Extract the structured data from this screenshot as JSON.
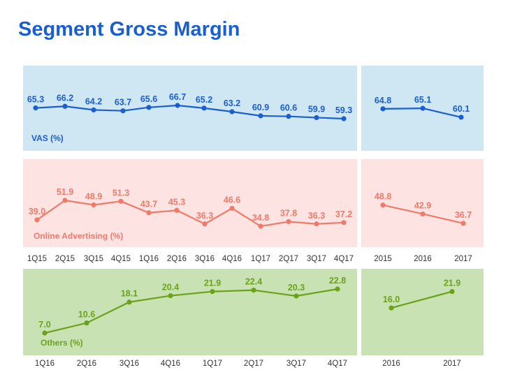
{
  "title": "Segment Gross Margin",
  "chart_data": [
    {
      "type": "line",
      "name": "VAS (%)",
      "color": "#1a5fd1",
      "panel_color": "#cfe7f2",
      "x": [
        "1Q15",
        "2Q15",
        "3Q15",
        "4Q15",
        "1Q16",
        "2Q16",
        "3Q16",
        "4Q16",
        "1Q17",
        "2Q17",
        "3Q17",
        "4Q17"
      ],
      "values": [
        65.3,
        66.2,
        64.2,
        63.7,
        65.6,
        66.7,
        65.2,
        63.2,
        60.9,
        60.6,
        59.9,
        59.3
      ]
    },
    {
      "type": "line",
      "name": "VAS (%)",
      "color": "#1a5fd1",
      "panel_color": "#cfe7f2",
      "x": [
        "2015",
        "2016",
        "2017"
      ],
      "values": [
        64.8,
        65.1,
        60.1
      ]
    },
    {
      "type": "line",
      "name": "Online Advertising (%)",
      "color": "#f07a6a",
      "panel_color": "#fde4e2",
      "x": [
        "1Q15",
        "2Q15",
        "3Q15",
        "4Q15",
        "1Q16",
        "2Q16",
        "3Q16",
        "4Q16",
        "1Q17",
        "2Q17",
        "3Q17",
        "4Q17"
      ],
      "values": [
        39.0,
        51.9,
        48.9,
        51.3,
        43.7,
        45.3,
        36.3,
        46.6,
        34.8,
        37.8,
        36.3,
        37.2
      ]
    },
    {
      "type": "line",
      "name": "Online Advertising (%)",
      "color": "#f07a6a",
      "panel_color": "#fde4e2",
      "x": [
        "2015",
        "2016",
        "2017"
      ],
      "values": [
        48.8,
        42.9,
        36.7
      ]
    },
    {
      "type": "line",
      "name": "Others (%)",
      "color": "#6aa21a",
      "panel_color": "#c9e2b3",
      "x": [
        "1Q16",
        "2Q16",
        "3Q16",
        "4Q16",
        "1Q17",
        "2Q17",
        "3Q17",
        "4Q17"
      ],
      "values": [
        7.0,
        10.6,
        18.1,
        20.4,
        21.9,
        22.4,
        20.3,
        22.8
      ]
    },
    {
      "type": "line",
      "name": "Others (%)",
      "color": "#6aa21a",
      "panel_color": "#c9e2b3",
      "x": [
        "2016",
        "2017"
      ],
      "values": [
        16.0,
        21.9
      ]
    }
  ]
}
